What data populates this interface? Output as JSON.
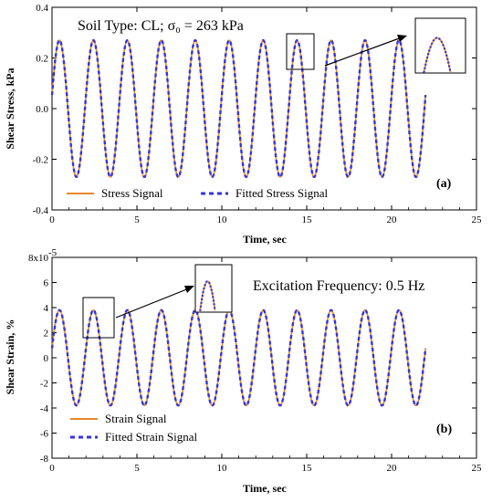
{
  "chart_data": [
    {
      "type": "line",
      "panel_label": "(a)",
      "xlabel": "Time, sec",
      "ylabel": "Shear Stress, kPa",
      "xlim": [
        0,
        25
      ],
      "ylim": [
        -0.4,
        0.4
      ],
      "x_ticks": [
        "0",
        "5",
        "10",
        "15",
        "20",
        "25"
      ],
      "y_ticks": [
        "-0.4",
        "-0.2",
        "0.0",
        "0.2",
        "0.4"
      ],
      "y_tick_values": [
        -0.4,
        -0.2,
        0.0,
        0.2,
        0.4
      ],
      "annotation": "Soil Type: CL; σ₀ = 263 kPa",
      "signal": {
        "frequency_hz": 0.5,
        "amplitude": 0.27,
        "offset": 0.0,
        "t_start": 0,
        "t_end": 22
      },
      "inset_zoom": {
        "x_range": [
          14,
          15
        ],
        "y_range": [
          0.18,
          0.32
        ]
      },
      "legend": {
        "placement": "bottom-left"
      },
      "series": [
        {
          "name": "Stress Signal",
          "style": "solid",
          "color": "#E8862C"
        },
        {
          "name": "Fitted Stress Signal",
          "style": "dashed",
          "color": "#3333E0"
        }
      ]
    },
    {
      "type": "line",
      "panel_label": "(b)",
      "xlabel": "Time, sec",
      "ylabel": "Shear Strain, %",
      "xlim": [
        0,
        25
      ],
      "ylim": [
        -8e-05,
        8e-05
      ],
      "x_ticks": [
        "0",
        "5",
        "10",
        "15",
        "20",
        "25"
      ],
      "y_ticks": [
        "-8",
        "-6",
        "-4",
        "-2",
        "0",
        "2",
        "4",
        "6",
        "8x10"
      ],
      "y_tick_values": [
        -8e-05,
        -6e-05,
        -4e-05,
        -2e-05,
        0,
        2e-05,
        4e-05,
        6e-05,
        8e-05
      ],
      "y_top_exponent": "-5",
      "annotation": "Excitation Frequency: 0.5 Hz",
      "signal": {
        "frequency_hz": 0.5,
        "amplitude": 3.8e-05,
        "offset": 0.0,
        "t_start": 0,
        "t_end": 22
      },
      "inset_zoom": {
        "x_range": [
          2,
          3.3
        ],
        "y_range": [
          2.5e-05,
          4.5e-05
        ]
      },
      "legend": {
        "placement": "bottom-left"
      },
      "series": [
        {
          "name": "Strain Signal",
          "style": "solid",
          "color": "#E8862C"
        },
        {
          "name": "Fitted Strain Signal",
          "style": "dashed",
          "color": "#3333E0"
        }
      ]
    }
  ]
}
